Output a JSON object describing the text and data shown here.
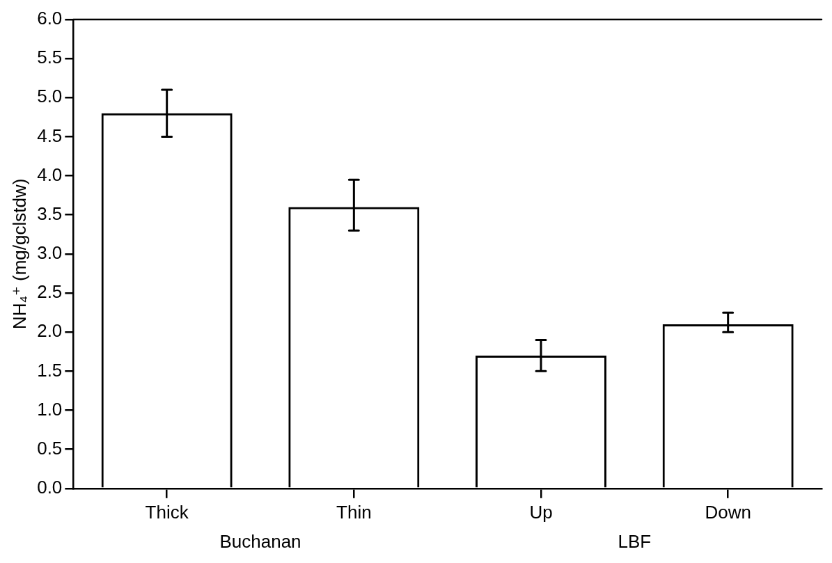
{
  "chart_data": {
    "type": "bar",
    "ylabel": "NH₄⁺ (mg/gclstdw)",
    "categories": [
      "Thick",
      "Thin",
      "Up",
      "Down"
    ],
    "values": [
      4.8,
      3.6,
      1.7,
      2.1
    ],
    "errors": [
      [
        4.5,
        5.1
      ],
      [
        3.3,
        3.95
      ],
      [
        1.5,
        1.9
      ],
      [
        2.0,
        2.25
      ]
    ],
    "color": "#000000",
    "ylim": [
      0,
      6
    ],
    "yticks": [
      {
        "value": 0,
        "label": "0.0"
      },
      {
        "value": 0.5,
        "label": "0.5"
      },
      {
        "value": 1,
        "label": "1.0"
      },
      {
        "value": 1.5,
        "label": "1.5"
      },
      {
        "value": 2,
        "label": "2.0"
      },
      {
        "value": 2.5,
        "label": "2.5"
      },
      {
        "value": 3,
        "label": "3.0"
      },
      {
        "value": 3.5,
        "label": "3.5"
      },
      {
        "value": 4,
        "label": "4.0"
      },
      {
        "value": 4.5,
        "label": "4.5"
      },
      {
        "value": 5,
        "label": "5.0"
      },
      {
        "value": 5.5,
        "label": "5.5"
      },
      {
        "value": 6,
        "label": "6.0"
      }
    ],
    "grid": false,
    "annotations": [
      "Buchanan",
      "LBF"
    ]
  }
}
